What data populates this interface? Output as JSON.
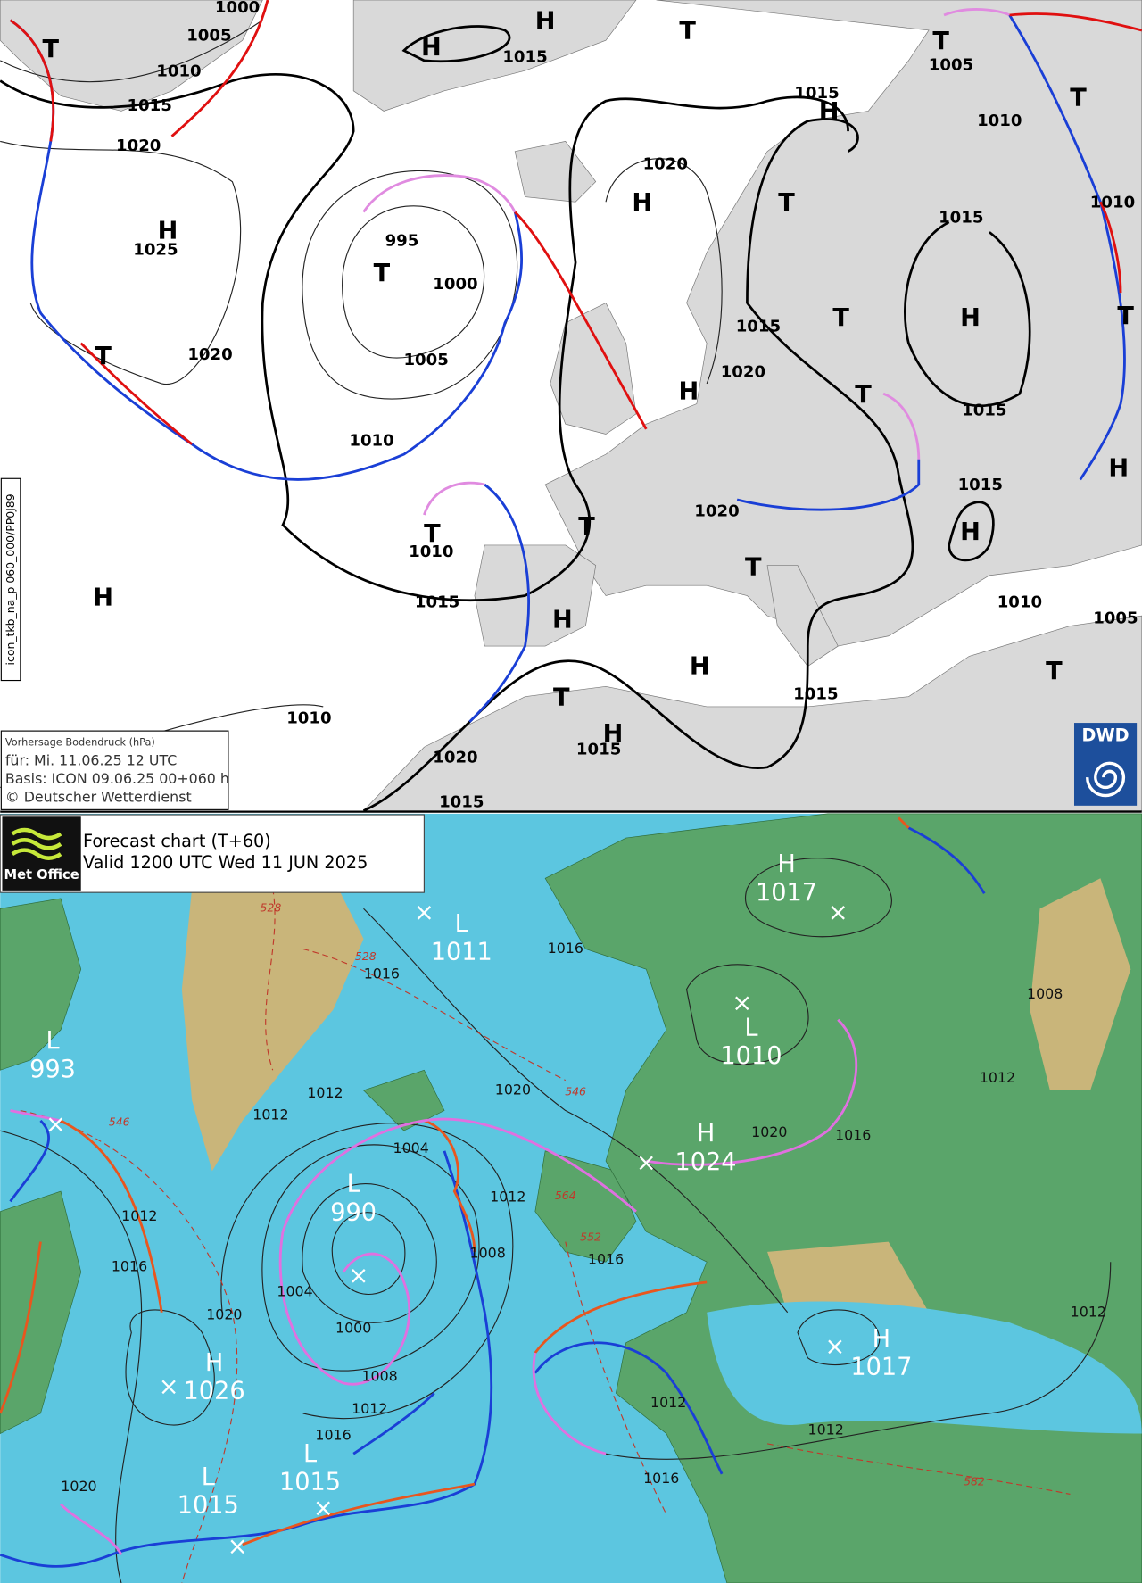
{
  "dwd_chart": {
    "legend": [
      "Vorhersage Bodendruck (hPa)",
      "für:  Mi. 11.06.25  12 UTC",
      "Basis: ICON  09.06.25 00+060 h",
      "© Deutscher Wetterdienst"
    ],
    "side_label": "icon_tkb_na_p 060_000/PP0J89",
    "logo": "DWD",
    "isobar_labels": [
      "1000",
      "1005",
      "1010",
      "1015",
      "1020",
      "1025",
      "995",
      "1000",
      "1005",
      "1010",
      "1010",
      "1015",
      "1015",
      "1020",
      "1015",
      "1005",
      "1010",
      "1010",
      "1015",
      "1015",
      "1020",
      "1015",
      "1020",
      "1015",
      "1010",
      "1005",
      "1015",
      "1020",
      "1015",
      "1015",
      "1010",
      "1020"
    ],
    "centers": [
      "T",
      "H",
      "H",
      "T",
      "T",
      "T",
      "H",
      "H",
      "T",
      "H",
      "T",
      "T",
      "H",
      "T",
      "T",
      "H",
      "T",
      "H",
      "T",
      "T",
      "H",
      "T",
      "H",
      "H",
      "H",
      "T",
      "H",
      "T"
    ]
  },
  "metoffice_chart": {
    "title": "Forecast chart (T+60)",
    "valid": "Valid 1200 UTC Wed 11 JUN 2025",
    "logo": "Met Office",
    "centers": [
      {
        "letter": "L",
        "pressure": "1011"
      },
      {
        "letter": "H",
        "pressure": "1017"
      },
      {
        "letter": "L",
        "pressure": "993"
      },
      {
        "letter": "L",
        "pressure": "1010"
      },
      {
        "letter": "H",
        "pressure": "1024"
      },
      {
        "letter": "L",
        "pressure": "990"
      },
      {
        "letter": "H",
        "pressure": "1026"
      },
      {
        "letter": "H",
        "pressure": "1017"
      },
      {
        "letter": "L",
        "pressure": "1015"
      },
      {
        "letter": "L",
        "pressure": "1015"
      }
    ],
    "isobar_labels": [
      "1016",
      "1016",
      "1012",
      "1012",
      "1020",
      "1004",
      "1012",
      "1008",
      "1016",
      "1020",
      "1016",
      "1012",
      "1008",
      "1012",
      "1016",
      "1020",
      "1004",
      "1000",
      "1008",
      "1012",
      "1016",
      "1012",
      "1012",
      "1016",
      "1020",
      "1012"
    ],
    "thickness_labels": [
      "528",
      "528",
      "546",
      "546",
      "552",
      "564",
      "582"
    ]
  }
}
